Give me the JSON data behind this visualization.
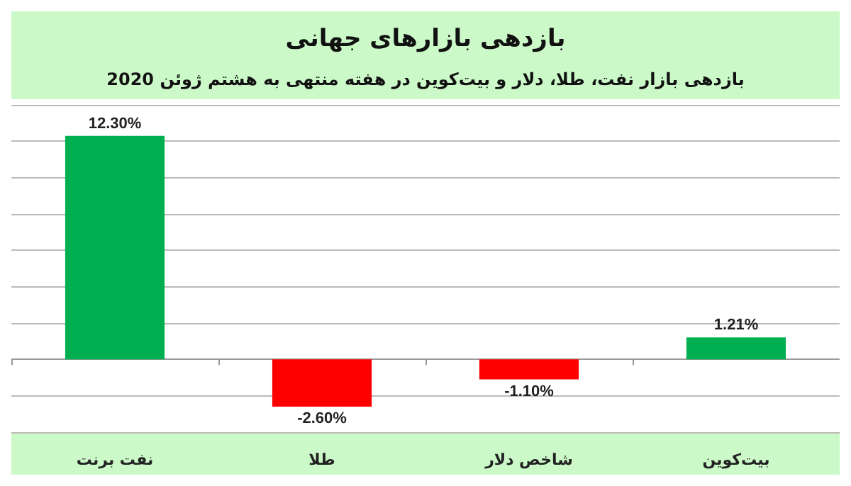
{
  "chart_data": {
    "type": "bar",
    "title": "بازدهی بازارهای جهانی",
    "subtitle": "بازدهی بازار نفت، طلا، دلار و بیت‌کوین در هفته منتهی به هشتم ژوئن 2020",
    "categories": [
      "نفت برنت",
      "طلا",
      "شاخص دلار",
      "بیت‌کوین"
    ],
    "values": [
      12.3,
      -2.6,
      -1.1,
      1.21
    ],
    "value_labels": [
      "12.30%",
      "-2.60%",
      "-1.10%",
      "1.21%"
    ],
    "colors": [
      "#00b050",
      "#ff0000",
      "#ff0000",
      "#00b050"
    ],
    "ylim": [
      -4,
      14
    ],
    "yticks": [
      {
        "value": -4,
        "label": null
      },
      {
        "value": -2,
        "label": null
      },
      {
        "value": 0,
        "label": null
      },
      {
        "value": 2,
        "label": null
      },
      {
        "value": 4,
        "label": null
      },
      {
        "value": 6,
        "label": null
      },
      {
        "value": 8,
        "label": null
      },
      {
        "value": 10,
        "label": null
      },
      {
        "value": 12,
        "label": null
      },
      {
        "value": 14,
        "label": null
      }
    ],
    "tick_labels": "x",
    "grid": "y"
  }
}
